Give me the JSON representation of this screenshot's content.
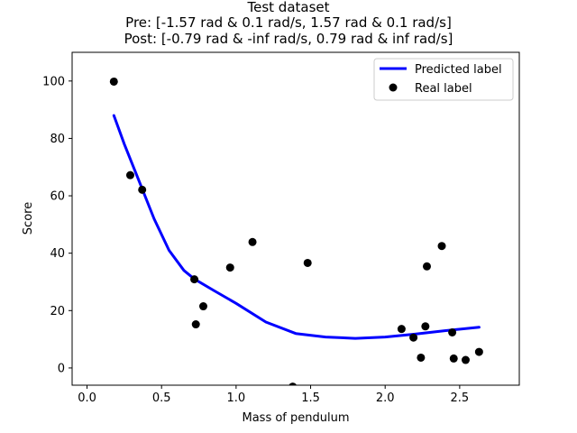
{
  "chart_data": {
    "type": "scatter",
    "title": "Test dataset",
    "subtitle_lines": [
      "Pre: [-1.57 rad & 0.1 rad/s, 1.57 rad & 0.1 rad/s]",
      "Post: [-0.79 rad & -inf rad/s, 0.79 rad & inf rad/s]"
    ],
    "xlabel": "Mass of pendulum",
    "ylabel": "Score",
    "xlim": [
      -0.1,
      2.9
    ],
    "ylim": [
      -6,
      110
    ],
    "xticks": [
      0.0,
      0.5,
      1.0,
      1.5,
      2.0,
      2.5
    ],
    "xtick_labels": [
      "0.0",
      "0.5",
      "1.0",
      "1.5",
      "2.0",
      "2.5"
    ],
    "yticks": [
      0,
      20,
      40,
      60,
      80,
      100
    ],
    "ytick_labels": [
      "0",
      "20",
      "40",
      "60",
      "80",
      "100"
    ],
    "grid": false,
    "legend": {
      "placement": "top-right",
      "entries": [
        "Predicted label",
        "Real label"
      ]
    },
    "series": [
      {
        "name": "Predicted label",
        "kind": "line",
        "color": "#0000ff",
        "x": [
          0.18,
          0.25,
          0.35,
          0.45,
          0.55,
          0.65,
          0.72,
          0.85,
          1.0,
          1.2,
          1.4,
          1.6,
          1.8,
          2.0,
          2.2,
          2.4,
          2.63
        ],
        "y": [
          88,
          78,
          65,
          52,
          41,
          34,
          31,
          27,
          22.5,
          16,
          12,
          10.8,
          10.3,
          10.8,
          11.8,
          13,
          14.2
        ]
      },
      {
        "name": "Real label",
        "kind": "scatter",
        "color": "#000000",
        "x": [
          0.18,
          0.29,
          0.37,
          0.72,
          0.73,
          0.78,
          0.96,
          1.11,
          1.38,
          1.48,
          2.11,
          2.19,
          2.24,
          2.27,
          2.28,
          2.38,
          2.45,
          2.46,
          2.54,
          2.63
        ],
        "y": [
          99.8,
          67.2,
          62.1,
          30.9,
          15.2,
          21.5,
          35.0,
          43.9,
          -6.5,
          36.6,
          13.6,
          10.6,
          3.6,
          14.5,
          35.4,
          42.5,
          12.4,
          3.3,
          2.8,
          5.6
        ]
      }
    ]
  }
}
